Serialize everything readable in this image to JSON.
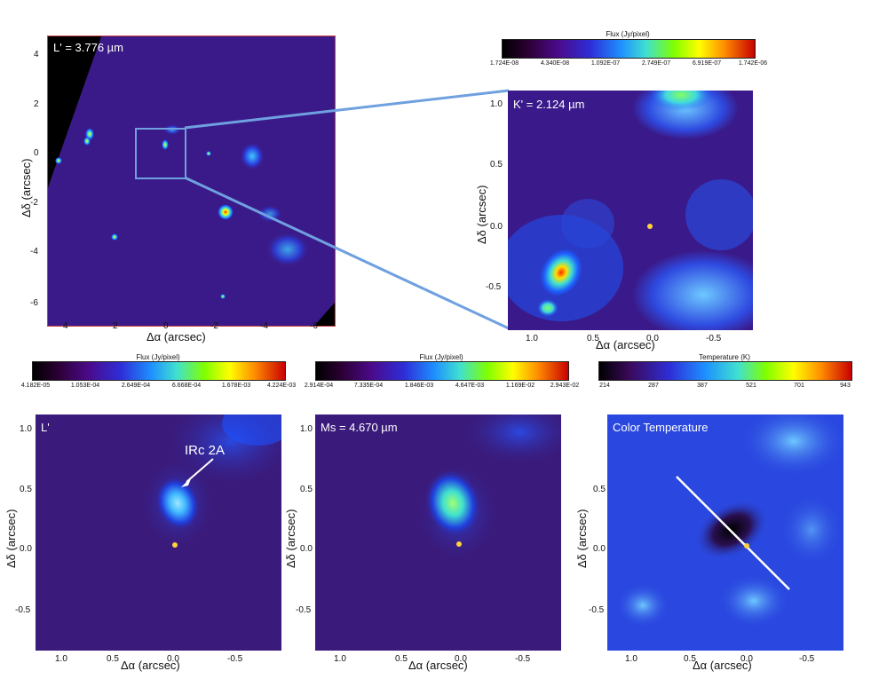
{
  "figure": {
    "top_left": {
      "label": "L' = 3.776 µm",
      "xlabel": "Δα (arcsec)",
      "ylabel": "Δδ (arcsec)",
      "xticks": [
        "4",
        "2",
        "0",
        "-2",
        "-4",
        "-6"
      ],
      "yticks": [
        "4",
        "2",
        "0",
        "-2",
        "-4",
        "-6"
      ]
    },
    "top_right": {
      "label": "K' = 2.124 µm",
      "xlabel": "Δα (arcsec)",
      "ylabel": "Δδ (arcsec)",
      "xticks": [
        "1.0",
        "0.5",
        "0.0",
        "-0.5"
      ],
      "yticks": [
        "1.0",
        "0.5",
        "0.0",
        "-0.5"
      ],
      "colorbar": {
        "title": "Flux (Jy/pixel)",
        "ticks": [
          "1.724E-08",
          "4.340E-08",
          "1.092E-07",
          "2.749E-07",
          "6.919E-07",
          "1.742E-06"
        ]
      }
    },
    "bottom_left": {
      "label": "L'",
      "annotation": "IRc 2A",
      "xlabel": "Δα (arcsec)",
      "ylabel": "Δδ (arcsec)",
      "xticks": [
        "1.0",
        "0.5",
        "0.0",
        "-0.5"
      ],
      "yticks": [
        "1.0",
        "0.5",
        "0.0",
        "-0.5"
      ],
      "colorbar": {
        "title": "Flux (Jy/pixel)",
        "ticks": [
          "4.182E-05",
          "1.053E-04",
          "2.649E-04",
          "6.668E-04",
          "1.678E-03",
          "4.224E-03"
        ]
      }
    },
    "bottom_middle": {
      "label": "Ms = 4.670 µm",
      "xlabel": "Δα (arcsec)",
      "ylabel": "Δδ (arcsec)",
      "xticks": [
        "1.0",
        "0.5",
        "0.0",
        "-0.5"
      ],
      "yticks": [
        "1.0",
        "0.5",
        "0.0",
        "-0.5"
      ],
      "colorbar": {
        "title": "Flux (Jy/pixel)",
        "ticks": [
          "2.914E-04",
          "7.335E-04",
          "1.846E-03",
          "4.647E-03",
          "1.169E-02",
          "2.943E-02"
        ]
      }
    },
    "bottom_right": {
      "label": "Color Temperature",
      "xlabel": "Δα (arcsec)",
      "ylabel": "Δδ (arcsec)",
      "xticks": [
        "1.0",
        "0.5",
        "0.0",
        "-0.5"
      ],
      "yticks": [
        "1.0",
        "0.5",
        "0.0",
        "-0.5"
      ],
      "colorbar": {
        "title": "Temperature (K)",
        "ticks": [
          "214",
          "287",
          "387",
          "521",
          "701",
          "943"
        ]
      }
    }
  },
  "colors": {
    "zoom_box": "#6fa0e0",
    "source_marker": "#ffd23a",
    "line": "#ffffff"
  }
}
